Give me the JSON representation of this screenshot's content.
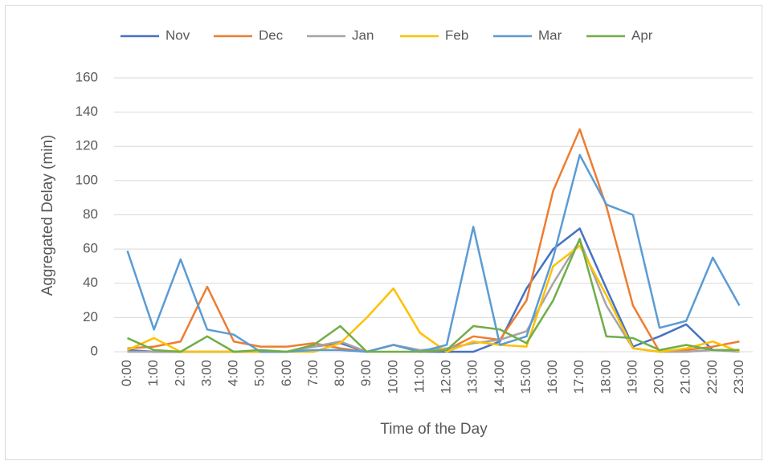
{
  "chart_data": {
    "type": "line",
    "x_label": "Time of the Day",
    "y_label": "Aggregated Delay (min)",
    "categories": [
      "0:00",
      "1:00",
      "2:00",
      "3:00",
      "4:00",
      "5:00",
      "6:00",
      "7:00",
      "8:00",
      "9:00",
      "10:00",
      "11:00",
      "12:00",
      "13:00",
      "14:00",
      "15:00",
      "16:00",
      "17:00",
      "18:00",
      "19:00",
      "20:00",
      "21:00",
      "22:00",
      "23:00"
    ],
    "series": [
      {
        "name": "Nov",
        "color": "#4472c4",
        "values": [
          1,
          0,
          0,
          0,
          0,
          0,
          0,
          3,
          5,
          0,
          4,
          0,
          0,
          0,
          6,
          37,
          60,
          72,
          37,
          3,
          9,
          16,
          1,
          1
        ]
      },
      {
        "name": "Dec",
        "color": "#ed7d31",
        "values": [
          2,
          3,
          6,
          38,
          6,
          3,
          3,
          5,
          2,
          0,
          4,
          0,
          1,
          9,
          7,
          30,
          94,
          130,
          85,
          27,
          0,
          1,
          3,
          6
        ]
      },
      {
        "name": "Jan",
        "color": "#a5a5a5",
        "values": [
          0,
          0,
          0,
          0,
          0,
          0,
          0,
          3,
          6,
          0,
          4,
          1,
          2,
          5,
          7,
          12,
          40,
          65,
          27,
          2,
          0,
          0,
          1,
          0
        ]
      },
      {
        "name": "Feb",
        "color": "#ffc000",
        "values": [
          1,
          8,
          0,
          0,
          0,
          0,
          0,
          0,
          5,
          20,
          37,
          11,
          0,
          6,
          4,
          3,
          50,
          62,
          33,
          2,
          0,
          2,
          6,
          0
        ]
      },
      {
        "name": "Mar",
        "color": "#5b9bd5",
        "values": [
          59,
          13,
          54,
          13,
          10,
          0,
          0,
          1,
          1,
          0,
          4,
          0,
          4,
          73,
          4,
          9,
          55,
          115,
          86,
          80,
          14,
          18,
          55,
          27
        ]
      },
      {
        "name": "Apr",
        "color": "#70ad47",
        "values": [
          8,
          1,
          0,
          9,
          0,
          1,
          0,
          4,
          15,
          0,
          0,
          0,
          1,
          15,
          13,
          5,
          30,
          66,
          9,
          8,
          1,
          4,
          1,
          1
        ]
      }
    ],
    "ylim": [
      0,
      160
    ],
    "yticks": [
      0,
      20,
      40,
      60,
      80,
      100,
      120,
      140,
      160
    ],
    "grid": true,
    "legend": "top"
  }
}
